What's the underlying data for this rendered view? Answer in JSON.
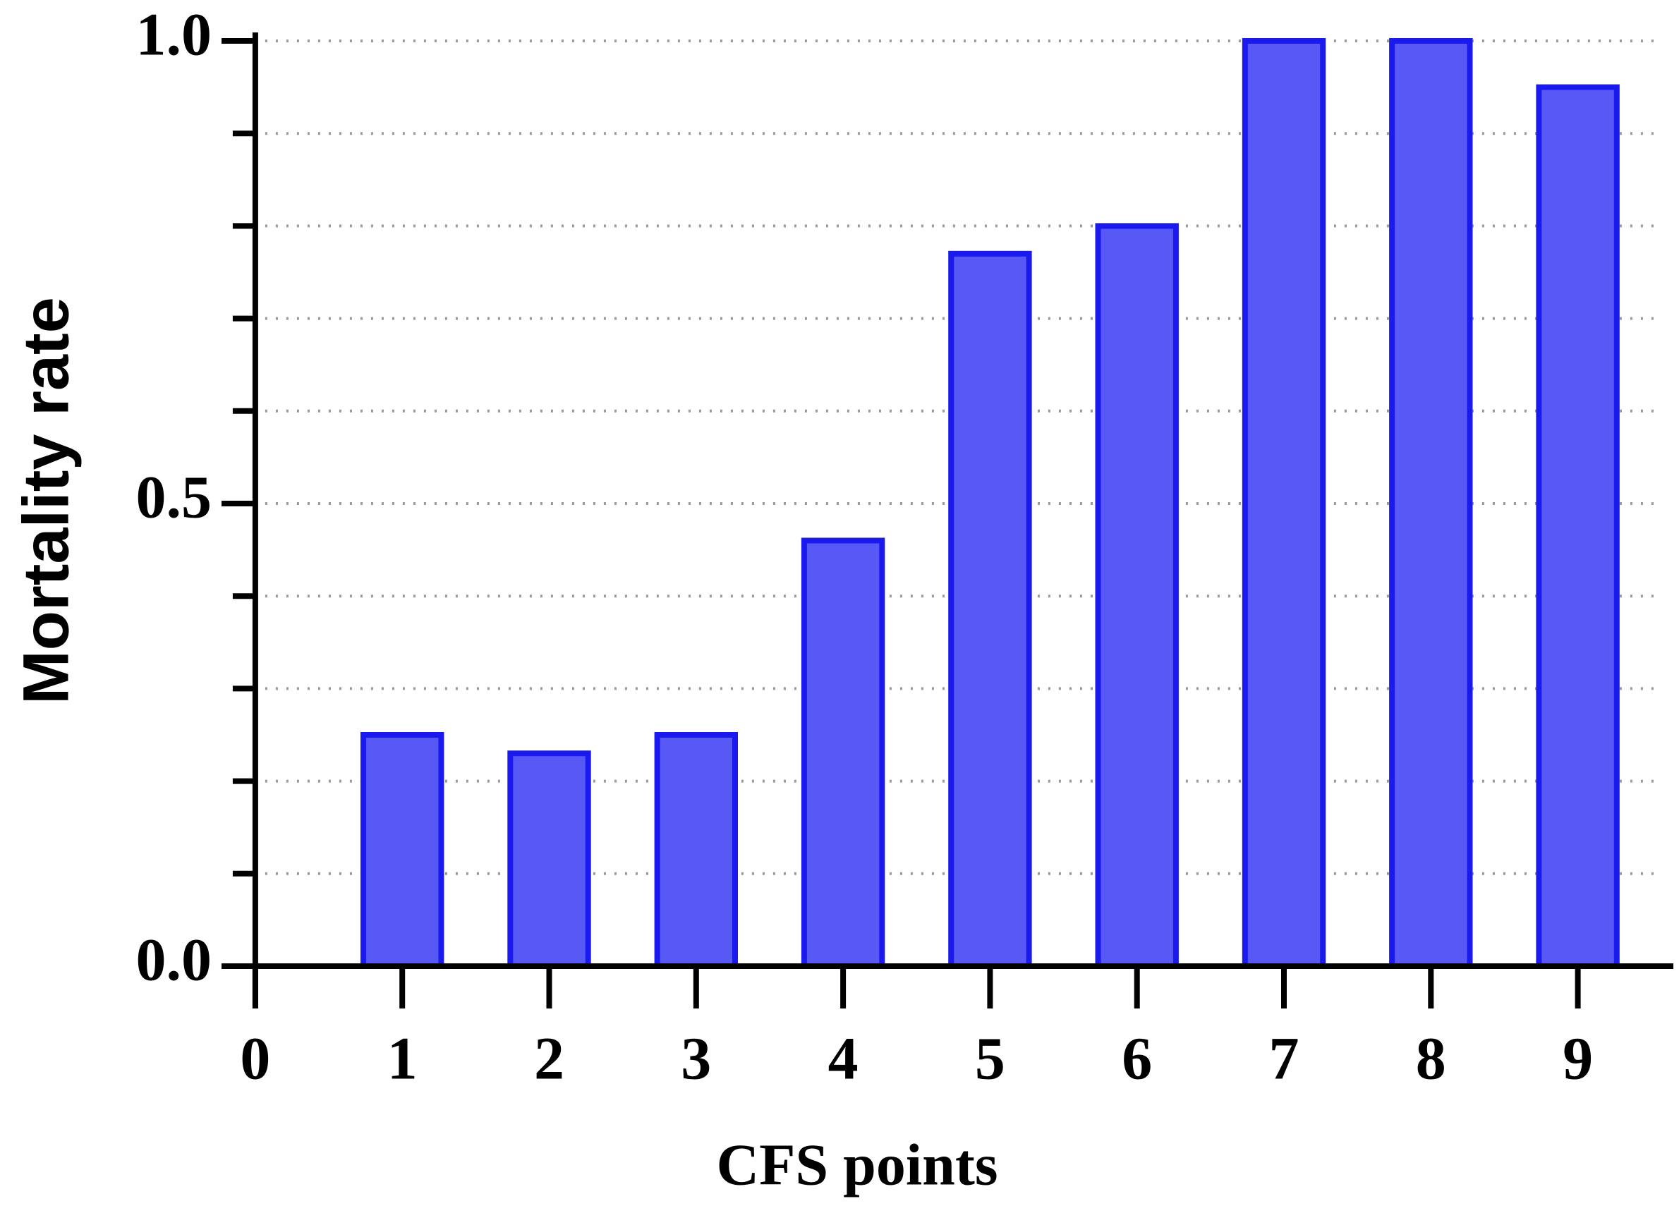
{
  "chart_data": {
    "type": "bar",
    "xlabel": "CFS points",
    "ylabel": "Mortality rate",
    "x": [
      1,
      2,
      3,
      4,
      5,
      6,
      7,
      8,
      9
    ],
    "values": [
      0.25,
      0.23,
      0.25,
      0.46,
      0.77,
      0.8,
      1.0,
      1.0,
      0.95
    ],
    "color": "#5858f6",
    "edgecolor": "#1a1aee",
    "xlim": [
      -0.23,
      9.65
    ],
    "xticks": [
      0,
      1,
      2,
      3,
      4,
      5,
      6,
      7,
      8,
      9
    ],
    "ylim": [
      0,
      1
    ],
    "yticks": [
      {
        "value": 0,
        "label": "0.0"
      },
      {
        "value": 0.5,
        "label": "0.5"
      },
      {
        "value": 1,
        "label": "1.0"
      }
    ],
    "yminorticks": [
      0.1,
      0.2,
      0.3,
      0.4,
      0.6,
      0.7,
      0.8,
      0.9
    ],
    "grid": true
  }
}
